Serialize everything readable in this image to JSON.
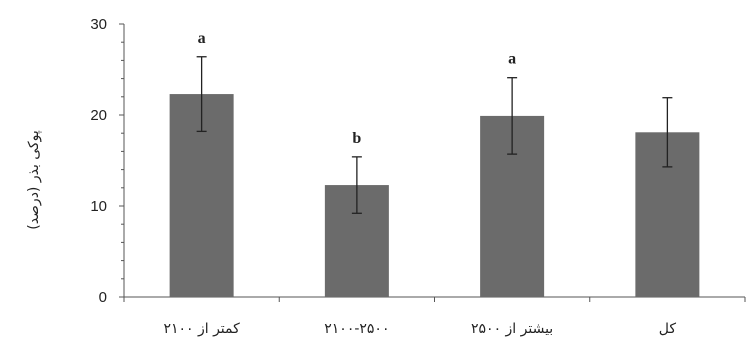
{
  "chart_data": {
    "type": "bar",
    "title": "",
    "xlabel": "",
    "ylabel": "پوکی بذر (درصد)",
    "ylim": [
      0,
      30
    ],
    "yticks": [
      0,
      10,
      20,
      30
    ],
    "grid": false,
    "categories": [
      "کمتر از ۲۱۰۰",
      "۲۱۰۰-۲۵۰۰",
      "بیشتر از ۲۵۰۰",
      "کل"
    ],
    "values": [
      22.3,
      12.3,
      19.9,
      18.1
    ],
    "errors": [
      4.1,
      3.1,
      4.2,
      3.8
    ],
    "significance": [
      "a",
      "b",
      "a",
      ""
    ],
    "colors": {
      "bar": "#6b6b6b",
      "axis": "#555555",
      "error": "#222222"
    }
  }
}
